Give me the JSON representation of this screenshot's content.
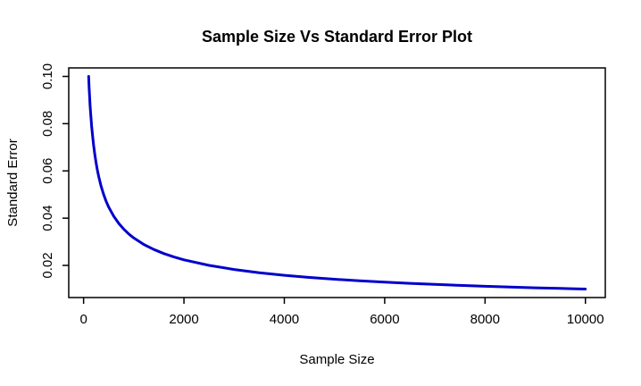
{
  "chart_data": {
    "type": "line",
    "title": "Sample Size Vs Standard Error Plot",
    "xlabel": "Sample Size",
    "ylabel": "Standard Error",
    "x_ticks": [
      0,
      2000,
      4000,
      6000,
      8000,
      10000
    ],
    "x_tick_labels": [
      "0",
      "2000",
      "4000",
      "6000",
      "8000",
      "10000"
    ],
    "y_ticks": [
      0.02,
      0.04,
      0.06,
      0.08,
      0.1
    ],
    "y_tick_labels": [
      "0.02",
      "0.04",
      "0.06",
      "0.08",
      "0.10"
    ],
    "x_domain": [
      -296,
      10396
    ],
    "y_domain": [
      0.0064,
      0.1036
    ],
    "grid": false,
    "legend": "none",
    "line_color": "#0000CC",
    "line_width": 3,
    "box_color": "#000000",
    "background_color": "#ffffff",
    "series": [
      {
        "name": "standard_error",
        "x": [
          100,
          110,
          120,
          130,
          140,
          150,
          160,
          180,
          200,
          225,
          250,
          275,
          300,
          350,
          400,
          450,
          500,
          600,
          700,
          800,
          900,
          1000,
          1200,
          1400,
          1600,
          1800,
          2000,
          2500,
          3000,
          3500,
          4000,
          4500,
          5000,
          5500,
          6000,
          6500,
          7000,
          7500,
          8000,
          8500,
          9000,
          9500,
          10000
        ],
        "y": [
          0.1,
          0.09535,
          0.09129,
          0.08771,
          0.08452,
          0.08165,
          0.07906,
          0.07454,
          0.07071,
          0.06667,
          0.06325,
          0.0603,
          0.05774,
          0.05345,
          0.05,
          0.04714,
          0.04472,
          0.04082,
          0.0378,
          0.03536,
          0.03333,
          0.03162,
          0.02887,
          0.02673,
          0.025,
          0.02357,
          0.02236,
          0.02,
          0.01826,
          0.0169,
          0.01581,
          0.01491,
          0.01414,
          0.01348,
          0.01291,
          0.0124,
          0.01195,
          0.01155,
          0.01118,
          0.01085,
          0.01054,
          0.01026,
          0.01
        ]
      }
    ]
  }
}
